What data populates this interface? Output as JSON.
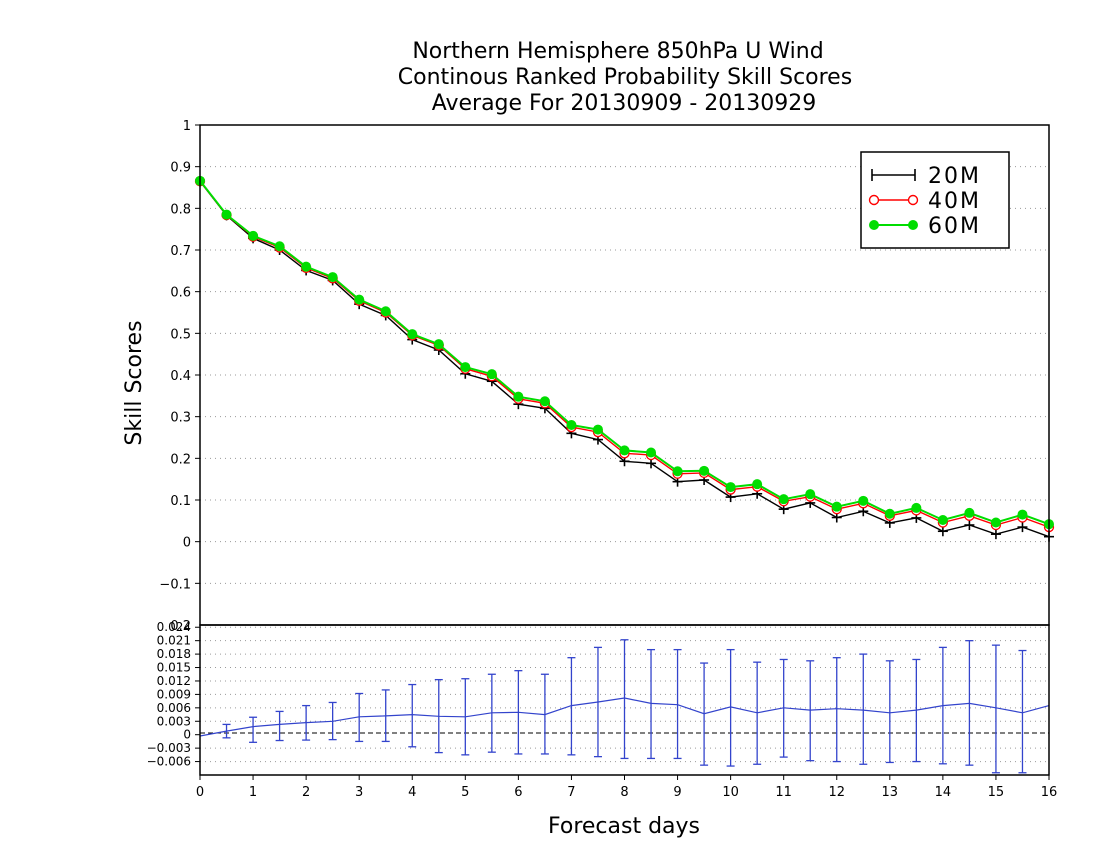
{
  "chart_data": [
    {
      "type": "line",
      "title": "Northern Hemisphere 850hPa U Wind",
      "subtitle": "Continous Ranked Probability Skill Scores",
      "period": "Average For 20130909 - 20130929",
      "xlabel": "Forecast days",
      "ylabel": "Skill Scores",
      "xlim": [
        0,
        16
      ],
      "ylim": [
        -0.2,
        1
      ],
      "x_ticks": [
        "0",
        "1",
        "2",
        "3",
        "4",
        "5",
        "6",
        "7",
        "8",
        "9",
        "10",
        "11",
        "12",
        "13",
        "14",
        "15",
        "16"
      ],
      "y_ticks": [
        "−0.1",
        "0",
        "0.1",
        "0.2",
        "0.3",
        "0.4",
        "0.5",
        "0.6",
        "0.7",
        "0.8",
        "0.9",
        "1"
      ],
      "y_tick_values": [
        -0.1,
        0,
        0.1,
        0.2,
        0.3,
        0.4,
        0.5,
        0.6,
        0.7,
        0.8,
        0.9,
        1
      ],
      "grid": true,
      "legend_position": "top-right",
      "x": [
        0,
        0.5,
        1,
        1.5,
        2,
        2.5,
        3,
        3.5,
        4,
        4.5,
        5,
        5.5,
        6,
        6.5,
        7,
        7.5,
        8,
        8.5,
        9,
        9.5,
        10,
        10.5,
        11,
        11.5,
        12,
        12.5,
        13,
        13.5,
        14,
        14.5,
        15,
        15.5,
        16
      ],
      "series": [
        {
          "name": "20M",
          "color": "#000000",
          "marker": "plus",
          "values": [
            0.865,
            0.783,
            0.728,
            0.7,
            0.651,
            0.627,
            0.57,
            0.543,
            0.485,
            0.46,
            0.403,
            0.385,
            0.33,
            0.32,
            0.26,
            0.245,
            0.193,
            0.188,
            0.144,
            0.148,
            0.107,
            0.115,
            0.078,
            0.093,
            0.058,
            0.073,
            0.045,
            0.057,
            0.025,
            0.04,
            0.018,
            0.035,
            0.012
          ]
        },
        {
          "name": "40M",
          "color": "#ff0000",
          "marker": "open-circle",
          "values": [
            0.865,
            0.784,
            0.732,
            0.706,
            0.657,
            0.632,
            0.578,
            0.55,
            0.495,
            0.471,
            0.415,
            0.397,
            0.343,
            0.332,
            0.275,
            0.263,
            0.212,
            0.208,
            0.163,
            0.165,
            0.125,
            0.132,
            0.097,
            0.108,
            0.078,
            0.092,
            0.062,
            0.075,
            0.046,
            0.062,
            0.04,
            0.058,
            0.035
          ]
        },
        {
          "name": "60M",
          "color": "#00dd00",
          "marker": "filled-circle",
          "values": [
            0.866,
            0.785,
            0.734,
            0.709,
            0.66,
            0.635,
            0.581,
            0.553,
            0.498,
            0.474,
            0.419,
            0.402,
            0.348,
            0.337,
            0.28,
            0.269,
            0.219,
            0.214,
            0.169,
            0.17,
            0.131,
            0.138,
            0.102,
            0.114,
            0.084,
            0.098,
            0.067,
            0.081,
            0.052,
            0.069,
            0.046,
            0.065,
            0.042
          ]
        }
      ]
    },
    {
      "type": "line",
      "xlabel": "Forecast days",
      "xlim": [
        0,
        16
      ],
      "ylim": [
        -0.009,
        0.0245
      ],
      "y_ticks": [
        "−0.006",
        "−0.003",
        "0",
        "0.003",
        "0.006",
        "0.009",
        "0.012",
        "0.015",
        "0.018",
        "0.021",
        "0.024"
      ],
      "y_tick_values": [
        -0.006,
        -0.003,
        0,
        0.003,
        0.006,
        0.009,
        0.012,
        0.015,
        0.018,
        0.021,
        0.024
      ],
      "top_tick_label": "0.2",
      "grid": true,
      "series": [
        {
          "name": "",
          "color": "#3344cc",
          "x": [
            0,
            0.5,
            1,
            1.5,
            2,
            2.5,
            3,
            3.5,
            4,
            4.5,
            5,
            5.5,
            6,
            6.5,
            7,
            7.5,
            8,
            8.5,
            9,
            9.5,
            10,
            10.5,
            11,
            11.5,
            12,
            12.5,
            13,
            13.5,
            14,
            14.5,
            15,
            15.5,
            16
          ],
          "values": [
            -0.0003,
            0.0008,
            0.0018,
            0.0023,
            0.0027,
            0.003,
            0.004,
            0.0042,
            0.0045,
            0.0041,
            0.004,
            0.0049,
            0.005,
            0.0045,
            0.0065,
            0.0073,
            0.0082,
            0.007,
            0.0067,
            0.0047,
            0.0062,
            0.0049,
            0.006,
            0.0055,
            0.0058,
            0.0055,
            0.0049,
            0.0055,
            0.0065,
            0.007,
            0.006,
            0.0049,
            0.0065
          ],
          "error_low": [
            null,
            -0.0007,
            -0.0017,
            -0.0013,
            -0.0012,
            -0.0011,
            -0.0015,
            -0.0015,
            -0.0027,
            -0.004,
            -0.0045,
            -0.0039,
            -0.0043,
            -0.0043,
            -0.0045,
            -0.0049,
            -0.0053,
            -0.0053,
            -0.0053,
            -0.0068,
            -0.007,
            -0.0066,
            -0.005,
            -0.0058,
            -0.006,
            -0.0066,
            -0.0062,
            -0.006,
            -0.0065,
            -0.0068,
            -0.0085,
            -0.0085,
            null
          ],
          "error_high": [
            null,
            0.0023,
            0.0039,
            0.0052,
            0.0065,
            0.0072,
            0.0092,
            0.01,
            0.0112,
            0.0123,
            0.0125,
            0.0135,
            0.0143,
            0.0135,
            0.0172,
            0.0195,
            0.0212,
            0.019,
            0.019,
            0.016,
            0.019,
            0.0162,
            0.0168,
            0.0165,
            0.0172,
            0.018,
            0.0165,
            0.0168,
            0.0195,
            0.021,
            0.02,
            0.0188,
            null
          ]
        }
      ]
    }
  ],
  "legend": {
    "entries": [
      "20M",
      "40M",
      "60M"
    ]
  }
}
